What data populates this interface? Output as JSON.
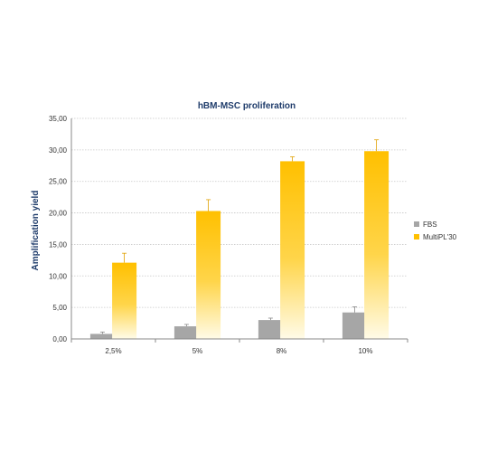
{
  "chart_data": {
    "type": "bar",
    "title": "hBM-MSC proliferation",
    "xlabel": "",
    "ylabel": "Amplification  yield",
    "categories": [
      "2,5%",
      "5%",
      "8%",
      "10%"
    ],
    "ylim": [
      0,
      35
    ],
    "yticks": [
      "0,00",
      "5,00",
      "10,00",
      "15,00",
      "20,00",
      "25,00",
      "30,00",
      "35,00"
    ],
    "grid": true,
    "legend_position": "right",
    "series": [
      {
        "name": "FBS",
        "values": [
          0.8,
          2.0,
          3.0,
          4.2
        ],
        "errors": [
          0.3,
          0.3,
          0.3,
          0.9
        ],
        "color": "#a6a6a6"
      },
      {
        "name": "MultiPL'30",
        "values": [
          12.1,
          20.3,
          28.2,
          29.8
        ],
        "errors": [
          1.5,
          1.8,
          0.7,
          1.8
        ],
        "color": "#ffc000"
      }
    ]
  }
}
